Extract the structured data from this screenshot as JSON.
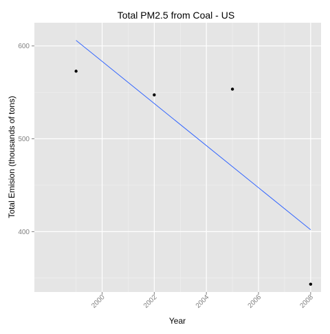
{
  "chart_data": {
    "type": "scatter",
    "title": "Total PM2.5 from Coal - US",
    "xlabel": "Year",
    "ylabel": "Total Emision (thousands of tons)",
    "x": [
      1999,
      2002,
      2005,
      2008
    ],
    "y": [
      572.8,
      547.3,
      553.5,
      343.4
    ],
    "trend_line": {
      "x": [
        1999,
        2008
      ],
      "y": [
        606.0,
        402.0
      ]
    },
    "xlim": [
      1997.4,
      2008.4
    ],
    "ylim": [
      335,
      625
    ],
    "x_ticks": [
      2000,
      2002,
      2004,
      2006,
      2008
    ],
    "y_ticks": [
      400,
      500,
      600
    ],
    "grid": true,
    "legend": "none",
    "colors": {
      "panel_background": "#E5E5E5",
      "grid_major": "#FFFFFF",
      "grid_minor": "#F2F2F2",
      "point": "#000000",
      "line": "#3366FF",
      "tick_label": "#7F7F7F",
      "text": "#000000"
    }
  }
}
